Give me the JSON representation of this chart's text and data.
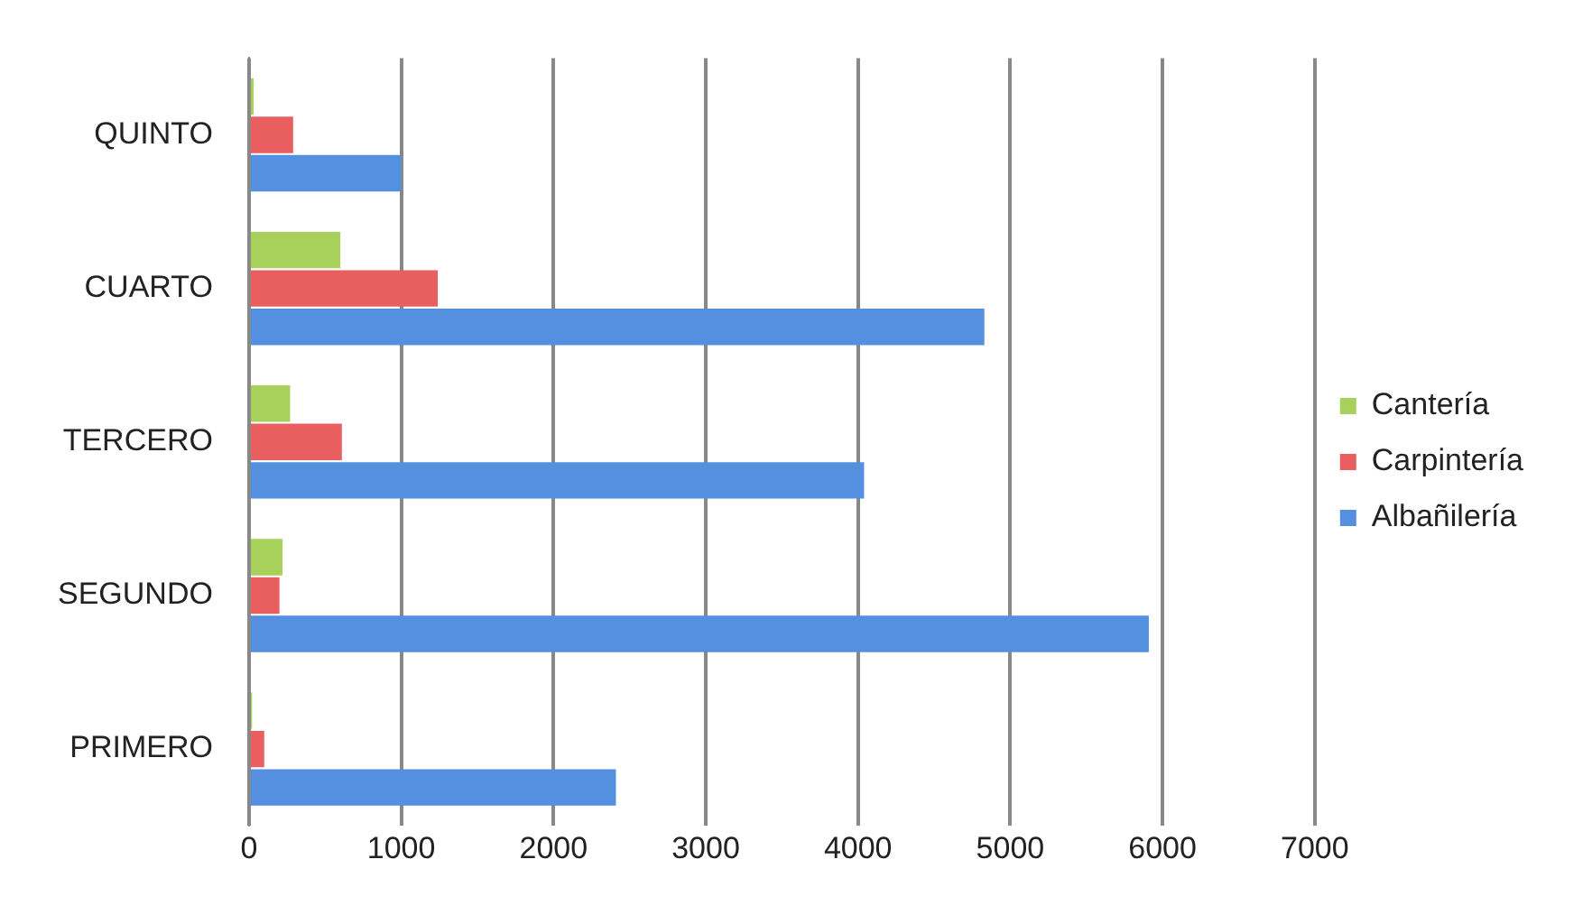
{
  "chart_data": {
    "type": "bar",
    "orientation": "horizontal",
    "categories": [
      "QUINTO",
      "CUARTO",
      "TERCERO",
      "SEGUNDO",
      "PRIMERO"
    ],
    "series": [
      {
        "name": "Cantería",
        "color": "#a8d15c",
        "values": [
          30,
          600,
          270,
          220,
          20
        ]
      },
      {
        "name": "Carpintería",
        "color": "#e95f5f",
        "values": [
          290,
          1240,
          610,
          200,
          100
        ]
      },
      {
        "name": "Albañilería",
        "color": "#5590e0",
        "values": [
          1000,
          4830,
          4040,
          5910,
          2410
        ]
      }
    ],
    "xlim": [
      0,
      7000
    ],
    "xticks": [
      0,
      1000,
      2000,
      3000,
      4000,
      5000,
      6000,
      7000
    ],
    "grid": "x",
    "legend": "right"
  }
}
